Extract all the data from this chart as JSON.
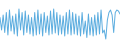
{
  "values": [
    55,
    30,
    60,
    25,
    65,
    20,
    70,
    28,
    58,
    22,
    62,
    18,
    72,
    30,
    65,
    20,
    68,
    25,
    60,
    22,
    55,
    18,
    65,
    20,
    70,
    22,
    62,
    18,
    65,
    25,
    58,
    20,
    68,
    22,
    72,
    24,
    65,
    20,
    60,
    22,
    58,
    18,
    65,
    22,
    70,
    20,
    65,
    22,
    62,
    20,
    58,
    18,
    65,
    22,
    48,
    15,
    62,
    20,
    55,
    18,
    60,
    20,
    65,
    22,
    70,
    24,
    30,
    12,
    50,
    65,
    70,
    60,
    25,
    65,
    70,
    68,
    62
  ],
  "line_color": "#5aacdf",
  "background_color": "#ffffff",
  "ylim_min": 0,
  "ylim_max": 90
}
